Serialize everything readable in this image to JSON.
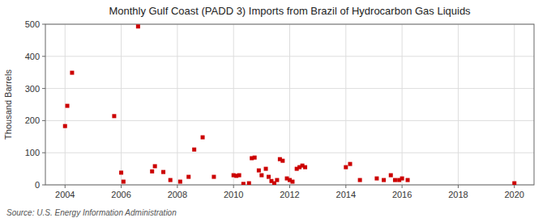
{
  "chart_data": {
    "type": "scatter",
    "title": "Monthly Gulf Coast (PADD 3) Imports from Brazil of Hydrocarbon Gas Liquids",
    "y_label": "Thousand Barrels",
    "annotations": [
      "Source: U.S. Energy Information Administration"
    ],
    "x": [
      2004.0,
      2004.08,
      2004.25,
      2005.75,
      2006.0,
      2006.08,
      2006.6,
      2007.1,
      2007.2,
      2007.5,
      2007.75,
      2008.1,
      2008.4,
      2008.6,
      2008.9,
      2009.3,
      2010.0,
      2010.1,
      2010.2,
      2010.35,
      2010.55,
      2010.65,
      2010.75,
      2010.9,
      2011.0,
      2011.15,
      2011.25,
      2011.35,
      2011.45,
      2011.55,
      2011.65,
      2011.75,
      2011.9,
      2012.0,
      2012.1,
      2012.25,
      2012.35,
      2012.45,
      2012.55,
      2014.0,
      2014.15,
      2014.5,
      2015.1,
      2015.35,
      2015.6,
      2015.75,
      2015.9,
      2016.0,
      2016.2,
      2020.0
    ],
    "values": [
      183,
      246,
      349,
      214,
      38,
      10,
      493,
      42,
      58,
      40,
      15,
      10,
      25,
      110,
      148,
      25,
      30,
      28,
      30,
      3,
      5,
      83,
      85,
      45,
      30,
      50,
      25,
      12,
      5,
      15,
      80,
      75,
      20,
      15,
      10,
      50,
      55,
      60,
      55,
      55,
      65,
      15,
      20,
      15,
      30,
      15,
      15,
      20,
      15,
      5
    ],
    "color": "#cc0000",
    "marker": "square",
    "xlim": [
      2003.3,
      2020.7
    ],
    "ylim": [
      0,
      500
    ],
    "xticks": [
      2004,
      2006,
      2008,
      2010,
      2012,
      2014,
      2016,
      2018,
      2020
    ],
    "yticks": [
      0,
      100,
      200,
      300,
      400,
      500
    ],
    "grid": true
  }
}
